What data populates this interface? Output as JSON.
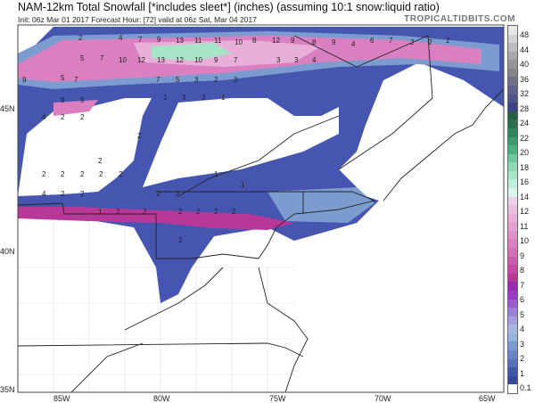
{
  "header": {
    "title": "NAM-12km Total Snowfall [*includes sleet*] (inches) (assuming 10:1 snow:liquid ratio)",
    "subtitle": "Init: 06z Mar 01 2017   Forecast Hour: [72]   valid at 06z Sat, Mar 04 2017",
    "brand": "TROPICALTIDBITS.COM"
  },
  "axes": {
    "lon_labels": [
      "85W",
      "80W",
      "75W",
      "70W",
      "65W"
    ],
    "lat_labels": [
      "45N",
      "40N",
      "35N"
    ]
  },
  "colorbar": {
    "labels": [
      "48",
      "44",
      "40",
      "36",
      "32",
      "28",
      "24",
      "22",
      "20",
      "18",
      "16",
      "14",
      "12",
      "11",
      "10",
      "9",
      "8",
      "7",
      "6",
      "5",
      "4",
      "3",
      "2",
      "1",
      "0.1"
    ],
    "colors": [
      "#e6e6e6",
      "#d2d2d2",
      "#bcbcbc",
      "#a8a8a8",
      "#969696",
      "#858585",
      "#70708a",
      "#5f6188",
      "#4e5288",
      "#3c4488",
      "#265e46",
      "#2a7050",
      "#318460",
      "#3c9a70",
      "#4cb080",
      "#70c8a0",
      "#90d8b8",
      "#a8e4c8",
      "#c0eedc",
      "#d8f6ea",
      "#f0d0e8",
      "#ecc0e0",
      "#e8b0d8",
      "#e4a0d0",
      "#e090c8",
      "#da80c0",
      "#d470b8",
      "#cc5cac",
      "#c648a4",
      "#b83898",
      "#9a28b0",
      "#9c3cc4",
      "#9c5cd0",
      "#9c80d8",
      "#a4a0dc",
      "#a8b8e0",
      "#94b4dc",
      "#7c9cd0",
      "#6884c4",
      "#5470b8",
      "#4058a8",
      "#3448a0",
      "#ffffff"
    ]
  },
  "snow_labels": [
    "2",
    "4",
    "7",
    "9",
    "13",
    "11",
    "11",
    "10",
    "8",
    "5",
    "7",
    "10",
    "12",
    "13",
    "12",
    "10",
    "9",
    "7",
    "9",
    "5",
    "7",
    "7",
    "5",
    "3",
    "2",
    "3",
    "9",
    "9",
    "1",
    "3",
    "3",
    "1",
    "4",
    "2",
    "2",
    "2",
    "2",
    "2",
    "2",
    "2",
    "2",
    "2",
    "1",
    "4",
    "2",
    "2",
    "2",
    "2",
    "12",
    "9",
    "8",
    "9",
    "4",
    "6",
    "7",
    "2",
    "2",
    "2",
    "3",
    "3",
    "4",
    "1",
    "1",
    "2",
    "2",
    "2",
    "2",
    "2",
    "2",
    "2"
  ]
}
